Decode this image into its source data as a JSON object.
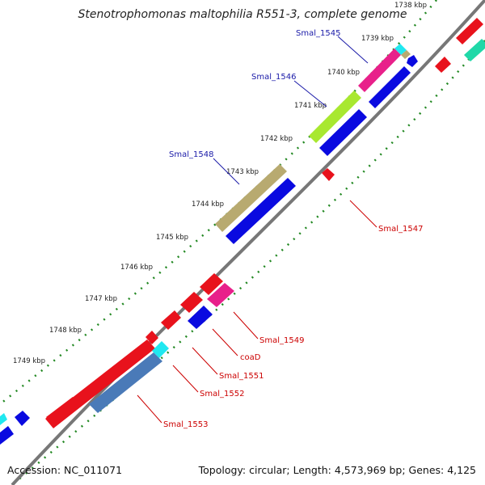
{
  "title": "Stenotrophomonas maltophilia R551-3, complete genome",
  "footer": {
    "accession": "Accession: NC_011071",
    "summary": "Topology: circular; Length: 4,573,969 bp; Genes: 4,125"
  },
  "colors": {
    "backbone": "#777777",
    "ticks": "#228822",
    "red": "#e8121c",
    "blue": "#0a0ae0",
    "magenta": "#e8208a",
    "cyan": "#20e8f0",
    "lime": "#a8e830",
    "khaki": "#b8aa70",
    "steel": "#4a7ab8",
    "teal": "#20d8a8",
    "label_blue": "#1a1aa8",
    "label_red": "#cc0000"
  },
  "kbp_labels": [
    "1738 kbp",
    "1739 kbp",
    "1740 kbp",
    "1741 kbp",
    "1742 kbp",
    "1743 kbp",
    "1744 kbp",
    "1745 kbp",
    "1746 kbp",
    "1747 kbp",
    "1748 kbp",
    "1749 kbp"
  ],
  "gene_labels": {
    "smal_1545": "Smal_1545",
    "smal_1546": "Smal_1546",
    "smal_1548": "Smal_1548",
    "smal_1547": "Smal_1547",
    "smal_1549": "Smal_1549",
    "coaD": "coaD",
    "smal_1551": "Smal_1551",
    "smal_1552": "Smal_1552",
    "smal_1553": "Smal_1553"
  }
}
